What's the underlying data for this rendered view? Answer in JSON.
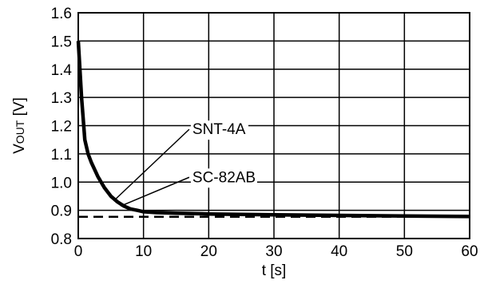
{
  "chart_data": {
    "type": "line",
    "title": "",
    "xlabel": "t [s]",
    "ylabel": {
      "main": "V",
      "sub": "OUT",
      "unit": " [V]"
    },
    "xlim": [
      0,
      60
    ],
    "ylim": [
      0.8,
      1.6
    ],
    "xticks": [
      "0",
      "10",
      "20",
      "30",
      "40",
      "50",
      "60"
    ],
    "yticks": [
      "0.8",
      "0.9",
      "1.0",
      "1.1",
      "1.2",
      "1.3",
      "1.4",
      "1.5",
      "1.6"
    ],
    "grid": true,
    "series": [
      {
        "style": "solid-thick",
        "x": [
          0,
          0.5,
          1,
          1.5,
          2,
          3,
          4,
          5,
          6,
          7,
          8,
          9,
          10,
          12,
          15,
          20,
          30,
          40,
          50,
          60
        ],
        "y": [
          1.5,
          1.3,
          1.15,
          1.1,
          1.07,
          1.02,
          0.98,
          0.95,
          0.93,
          0.915,
          0.905,
          0.9,
          0.895,
          0.892,
          0.89,
          0.887,
          0.884,
          0.882,
          0.88,
          0.878
        ]
      },
      {
        "style": "dashed",
        "x": [
          0,
          60
        ],
        "y": [
          0.877,
          0.877
        ]
      }
    ],
    "annotations": [
      {
        "text": "SNT-4A",
        "x": 17.5,
        "y": 1.17,
        "point_x": 5.5,
        "point_y": 0.935
      },
      {
        "text": "SC-82AB",
        "x": 17.5,
        "y": 1.0,
        "point_x": 6.5,
        "point_y": 0.915
      }
    ]
  }
}
